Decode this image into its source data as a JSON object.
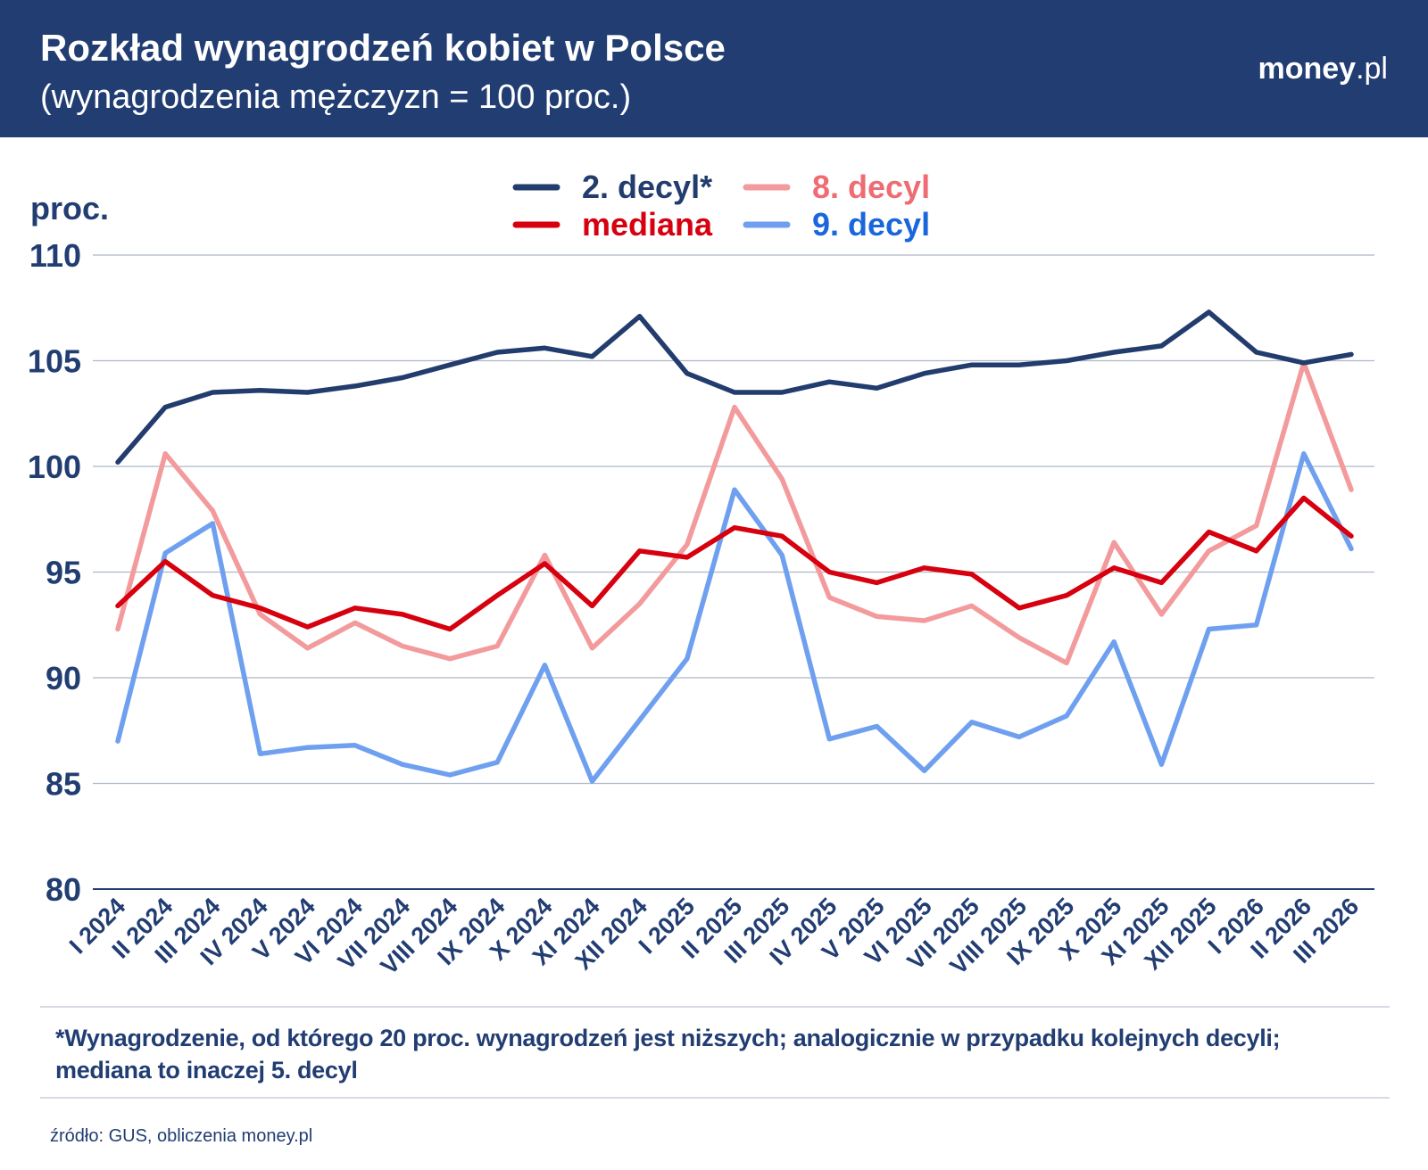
{
  "header": {
    "title": "Rozkład wynagrodzeń kobiet w Polsce",
    "subtitle": "(wynagrodzenia mężczyzn = 100 proc.)",
    "brand_bold": "money",
    "brand_light": ".pl"
  },
  "colors": {
    "header_bg": "#213d72",
    "decyl2": "#223c6e",
    "mediana": "#d6000f",
    "decyl8": "#f39a9c",
    "decyl9": "#6fa0ef",
    "grid": "#aeb8c8",
    "axis_text": "#213d72"
  },
  "chart_data": {
    "type": "line",
    "ylabel": "proc.",
    "ylim": [
      80,
      110
    ],
    "yticks": [
      80,
      85,
      90,
      95,
      100,
      105,
      110
    ],
    "grid": true,
    "legend_position": "top-center",
    "categories": [
      "I 2024",
      "II 2024",
      "III 2024",
      "IV 2024",
      "V 2024",
      "VI 2024",
      "VII 2024",
      "VIII 2024",
      "IX 2024",
      "X 2024",
      "XI 2024",
      "XII 2024",
      "I 2025",
      "II 2025",
      "III 2025",
      "IV 2025",
      "V 2025",
      "VI 2025",
      "VII 2025",
      "VIII 2025",
      "IX 2025",
      "X 2025",
      "XI 2025",
      "XII 2025",
      "I 2026",
      "II 2026",
      "III 2026"
    ],
    "series": [
      {
        "name": "2. decyl*",
        "color": "#223c6e",
        "legend_color": "#223c6e",
        "values": [
          100.2,
          102.8,
          103.5,
          103.6,
          103.5,
          103.8,
          104.2,
          104.8,
          105.4,
          105.6,
          105.2,
          107.1,
          104.4,
          103.5,
          103.5,
          104.0,
          103.7,
          104.4,
          104.8,
          104.8,
          105.0,
          105.4,
          105.7,
          107.3,
          105.4,
          104.9,
          105.3
        ]
      },
      {
        "name": "mediana",
        "color": "#d6000f",
        "legend_color": "#d6000f",
        "values": [
          93.4,
          95.5,
          93.9,
          93.3,
          92.4,
          93.3,
          93.0,
          92.3,
          93.9,
          95.4,
          93.4,
          96.0,
          95.7,
          97.1,
          96.7,
          95.0,
          94.5,
          95.2,
          94.9,
          93.3,
          93.9,
          95.2,
          94.5,
          96.9,
          96.0,
          98.5,
          96.7
        ]
      },
      {
        "name": "8. decyl",
        "color": "#f39a9c",
        "legend_color": "#ee6c74",
        "values": [
          92.3,
          100.6,
          97.9,
          93.0,
          91.4,
          92.6,
          91.5,
          90.9,
          91.5,
          95.8,
          91.4,
          93.5,
          96.3,
          102.8,
          99.4,
          93.8,
          92.9,
          92.7,
          93.4,
          91.9,
          90.7,
          96.4,
          93.0,
          96.0,
          97.2,
          104.9,
          98.9
        ]
      },
      {
        "name": "9. decyl",
        "color": "#6fa0ef",
        "legend_color": "#1a66dc",
        "values": [
          87.0,
          95.9,
          97.3,
          86.4,
          86.7,
          86.8,
          85.9,
          85.4,
          86.0,
          90.6,
          85.1,
          88.0,
          90.9,
          98.9,
          95.8,
          87.1,
          87.7,
          85.6,
          87.9,
          87.2,
          88.2,
          91.7,
          85.9,
          92.3,
          92.5,
          100.6,
          96.1
        ]
      }
    ]
  },
  "footnote": {
    "line1": "*Wynagrodzenie, od którego 20 proc. wynagrodzeń jest niższych; analogicznie w przypadku kolejnych decyli;",
    "line2": "mediana to inaczej 5. decyl"
  },
  "source": "źródło: GUS, obliczenia money.pl"
}
